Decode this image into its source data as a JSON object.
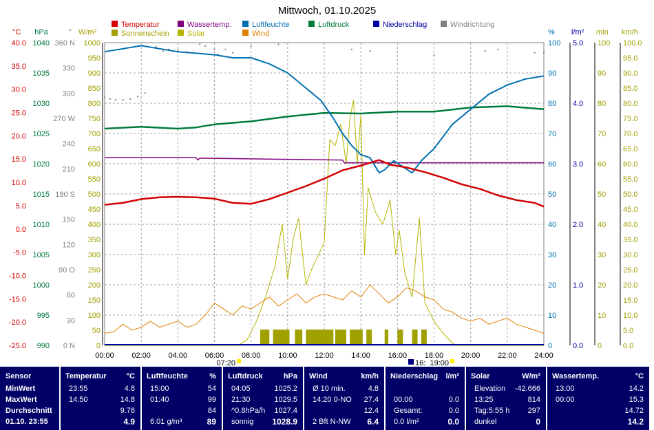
{
  "title": "Mittwoch, 01.10.2025",
  "colors": {
    "temperature": "#d40000",
    "water_temp": "#800080",
    "humidity": "#0070b0",
    "pressure": "#007a3d",
    "precipitation": "#0000a0",
    "wind_direction": "#808080",
    "sunshine": "#a0a000",
    "solar": "#b4b400",
    "wind": "#e08000",
    "panel_bg": "#000066"
  },
  "legend": [
    {
      "label": "Temperatur",
      "color": "#d40000"
    },
    {
      "label": "Wassertemp.",
      "color": "#800080"
    },
    {
      "label": "Luftfeuchte",
      "color": "#0070b0"
    },
    {
      "label": "Luftdruck",
      "color": "#007a3d"
    },
    {
      "label": "Niederschlag",
      "color": "#0000a0"
    },
    {
      "label": "Windrichtung",
      "color": "#808080"
    },
    {
      "label": "Sonnenschein",
      "color": "#a0a000"
    },
    {
      "label": "Solar",
      "color": "#b4b400"
    },
    {
      "label": "Wind",
      "color": "#e08000"
    }
  ],
  "sun_markers": {
    "sunrise": "07:20",
    "sunset": "19:00",
    "moon": "16:"
  },
  "chart_data": {
    "type": "line",
    "x_range": [
      "00:00",
      "24:00"
    ],
    "x_ticks": [
      "00:00",
      "02:00",
      "04:00",
      "06:00",
      "08:00",
      "10:00",
      "12:00",
      "14:00",
      "16:00",
      "18:00",
      "20:00",
      "22:00",
      "24:00"
    ],
    "axes": [
      {
        "unit": "°C",
        "ylim": [
          -25,
          40
        ],
        "color": "#d40000",
        "ticks": [
          "40.0",
          "35.0",
          "30.0",
          "25.0",
          "20.0",
          "15.0",
          "10.0",
          "5.0",
          "0.0",
          "-5.0",
          "-10.0",
          "-15.0",
          "-20.0",
          "-25.0"
        ]
      },
      {
        "unit": "hPa",
        "ylim": [
          990,
          1040
        ],
        "color": "#007a3d",
        "ticks": [
          "1040",
          "1035",
          "1030",
          "1025",
          "1020",
          "1015",
          "1010",
          "1005",
          "1000",
          "995",
          "990"
        ]
      },
      {
        "unit": "°",
        "ylim": [
          0,
          360
        ],
        "color": "#808080",
        "ticks": [
          "360 N",
          "330",
          "300",
          "270 W",
          "240",
          "210",
          "180 S",
          "150",
          "120",
          "90 O",
          "60",
          "30",
          "0 N"
        ]
      },
      {
        "unit": "W/m²",
        "ylim": [
          0,
          1000
        ],
        "color": "#a0a000",
        "ticks": [
          "1000",
          "950",
          "900",
          "850",
          "800",
          "750",
          "700",
          "650",
          "600",
          "550",
          "500",
          "450",
          "400",
          "350",
          "300",
          "250",
          "200",
          "150",
          "100",
          "50",
          "0"
        ]
      },
      {
        "unit": "%",
        "ylim": [
          0,
          100
        ],
        "color": "#0070b0",
        "ticks": [
          "100",
          "90",
          "80",
          "70",
          "60",
          "50",
          "40",
          "30",
          "20",
          "10",
          "0"
        ]
      },
      {
        "unit": "l/m²",
        "ylim": [
          0,
          5
        ],
        "color": "#0000a0",
        "ticks": [
          "5.0",
          "4.0",
          "3.0",
          "2.0",
          "1.0",
          "0.0"
        ]
      },
      {
        "unit": "min",
        "ylim": [
          0,
          100
        ],
        "color": "#a0a000",
        "ticks": [
          "100",
          "90",
          "80",
          "70",
          "60",
          "50",
          "40",
          "30",
          "20",
          "10",
          "0"
        ]
      },
      {
        "unit": "km/h",
        "ylim": [
          0,
          100
        ],
        "color": "#a0a000",
        "ticks": [
          "100.0",
          "95.0",
          "90.0",
          "85.0",
          "80.0",
          "75.0",
          "70.0",
          "65.0",
          "60.0",
          "55.0",
          "50.0",
          "45.0",
          "40.0",
          "35.0",
          "30.0",
          "25.0",
          "20.0",
          "15.0",
          "10.0",
          "5.0",
          "0.0"
        ]
      }
    ],
    "series": [
      {
        "name": "Temperatur",
        "unit": "°C",
        "points": [
          [
            0,
            5.2
          ],
          [
            1,
            5.6
          ],
          [
            2,
            6.4
          ],
          [
            3,
            6.8
          ],
          [
            4,
            6.9
          ],
          [
            5,
            6.8
          ],
          [
            6,
            6.5
          ],
          [
            7,
            5.6
          ],
          [
            8,
            5.4
          ],
          [
            9,
            6.4
          ],
          [
            10,
            7.8
          ],
          [
            11,
            9.2
          ],
          [
            12,
            10.8
          ],
          [
            13,
            12.6
          ],
          [
            14,
            13.6
          ],
          [
            15,
            14.8
          ],
          [
            15.6,
            13.8
          ],
          [
            16.5,
            13.2
          ],
          [
            17.5,
            12.2
          ],
          [
            18.5,
            11.0
          ],
          [
            19.5,
            9.6
          ],
          [
            20.5,
            8.6
          ],
          [
            21.5,
            7.2
          ],
          [
            22.5,
            6.2
          ],
          [
            23.5,
            5.6
          ],
          [
            24,
            4.8
          ]
        ]
      },
      {
        "name": "Luftfeuchte",
        "unit": "%",
        "points": [
          [
            0,
            97
          ],
          [
            1,
            98
          ],
          [
            2,
            99
          ],
          [
            3,
            98
          ],
          [
            4,
            97
          ],
          [
            5,
            96.5
          ],
          [
            6,
            96
          ],
          [
            7,
            95
          ],
          [
            8,
            95
          ],
          [
            9,
            93
          ],
          [
            10,
            90
          ],
          [
            11,
            85
          ],
          [
            11.8,
            81
          ],
          [
            12.5,
            75
          ],
          [
            13,
            70
          ],
          [
            13.5,
            66
          ],
          [
            14,
            63
          ],
          [
            14.5,
            62
          ],
          [
            15,
            57
          ],
          [
            15.3,
            58
          ],
          [
            15.8,
            61
          ],
          [
            16.3,
            59
          ],
          [
            16.8,
            57
          ],
          [
            17.3,
            61
          ],
          [
            18,
            65
          ],
          [
            19,
            73
          ],
          [
            20,
            78
          ],
          [
            21,
            83
          ],
          [
            22,
            86
          ],
          [
            23,
            88
          ],
          [
            24,
            89
          ]
        ]
      },
      {
        "name": "Luftdruck",
        "unit": "hPa",
        "points": [
          [
            0,
            1025.8
          ],
          [
            2,
            1026.1
          ],
          [
            4,
            1025.8
          ],
          [
            5,
            1026.0
          ],
          [
            6,
            1026.5
          ],
          [
            8,
            1027.0
          ],
          [
            10,
            1027.8
          ],
          [
            12,
            1028.4
          ],
          [
            14,
            1028.3
          ],
          [
            16,
            1028.6
          ],
          [
            18,
            1028.6
          ],
          [
            20,
            1029.3
          ],
          [
            22,
            1029.5
          ],
          [
            24,
            1029.0
          ]
        ]
      },
      {
        "name": "Wassertemp.",
        "unit": "°C",
        "points": [
          [
            0,
            15.3
          ],
          [
            5,
            15.3
          ],
          [
            5.1,
            14.8
          ],
          [
            5.2,
            15.2
          ],
          [
            13,
            14.8
          ],
          [
            13.1,
            14.2
          ],
          [
            24,
            14.2
          ]
        ]
      },
      {
        "name": "Wind",
        "unit": "km/h",
        "points": [
          [
            0,
            4
          ],
          [
            0.5,
            4.5
          ],
          [
            1,
            7
          ],
          [
            1.5,
            5
          ],
          [
            2,
            6
          ],
          [
            2.5,
            8
          ],
          [
            3,
            6
          ],
          [
            3.5,
            7
          ],
          [
            4,
            8
          ],
          [
            4.5,
            6
          ],
          [
            5,
            7
          ],
          [
            5.5,
            10
          ],
          [
            6,
            14
          ],
          [
            6.5,
            12
          ],
          [
            7,
            10
          ],
          [
            7.5,
            13
          ],
          [
            8,
            12
          ],
          [
            8.5,
            14
          ],
          [
            9,
            16
          ],
          [
            9.5,
            13
          ],
          [
            10,
            15
          ],
          [
            10.5,
            17
          ],
          [
            11,
            14
          ],
          [
            11.5,
            16
          ],
          [
            12,
            17
          ],
          [
            12.5,
            16
          ],
          [
            13,
            15
          ],
          [
            13.5,
            18
          ],
          [
            14,
            16
          ],
          [
            14.5,
            20
          ],
          [
            15,
            17
          ],
          [
            15.5,
            14
          ],
          [
            16,
            16
          ],
          [
            16.5,
            19
          ],
          [
            17,
            18
          ],
          [
            17.5,
            16
          ],
          [
            18,
            15
          ],
          [
            18.5,
            12
          ],
          [
            19,
            11
          ],
          [
            19.5,
            9
          ],
          [
            20,
            8
          ],
          [
            20.5,
            9
          ],
          [
            21,
            7
          ],
          [
            21.5,
            8
          ],
          [
            22,
            9
          ],
          [
            22.5,
            7
          ],
          [
            23,
            6
          ],
          [
            23.5,
            5
          ],
          [
            24,
            4
          ]
        ]
      },
      {
        "name": "Solar",
        "unit": "W/m²",
        "points": [
          [
            0,
            0
          ],
          [
            7.3,
            0
          ],
          [
            7.8,
            20
          ],
          [
            8.3,
            80
          ],
          [
            8.8,
            160
          ],
          [
            9.3,
            260
          ],
          [
            9.7,
            400
          ],
          [
            10,
            220
          ],
          [
            10.3,
            350
          ],
          [
            10.6,
            420
          ],
          [
            11,
            200
          ],
          [
            11.3,
            250
          ],
          [
            11.7,
            300
          ],
          [
            12,
            340
          ],
          [
            12.3,
            680
          ],
          [
            12.6,
            660
          ],
          [
            12.9,
            730
          ],
          [
            13.2,
            600
          ],
          [
            13.4,
            750
          ],
          [
            13.6,
            810
          ],
          [
            13.8,
            600
          ],
          [
            14.0,
            760
          ],
          [
            14.2,
            300
          ],
          [
            14.4,
            520
          ],
          [
            14.8,
            440
          ],
          [
            15.2,
            400
          ],
          [
            15.6,
            480
          ],
          [
            15.9,
            300
          ],
          [
            16.1,
            380
          ],
          [
            16.4,
            240
          ],
          [
            16.8,
            160
          ],
          [
            17.2,
            420
          ],
          [
            17.5,
            140
          ],
          [
            18,
            80
          ],
          [
            18.5,
            40
          ],
          [
            19,
            8
          ],
          [
            19.2,
            0
          ],
          [
            24,
            0
          ]
        ]
      }
    ],
    "sunshine_bars": [
      [
        8.5,
        9.0
      ],
      [
        9.2,
        10.1
      ],
      [
        10.4,
        10.8
      ],
      [
        11.0,
        12.5
      ],
      [
        12.6,
        13.2
      ],
      [
        13.4,
        14.1
      ],
      [
        14.3,
        14.6
      ],
      [
        15.3,
        15.5
      ],
      [
        16.0,
        16.3
      ],
      [
        16.8,
        17.1
      ],
      [
        17.3,
        17.6
      ]
    ],
    "wind_direction_points": [
      [
        0,
        295
      ],
      [
        0.3,
        293
      ],
      [
        0.6,
        292
      ],
      [
        1,
        292
      ],
      [
        1.4,
        293
      ],
      [
        1.8,
        296
      ],
      [
        2.2,
        300
      ],
      [
        2.8,
        355
      ],
      [
        3.2,
        350
      ],
      [
        3.5,
        352
      ],
      [
        4,
        351
      ],
      [
        4.5,
        349
      ],
      [
        5.2,
        358
      ],
      [
        5.5,
        356
      ],
      [
        6,
        352
      ],
      [
        6.2,
        346
      ],
      [
        6.6,
        352
      ],
      [
        7,
        348
      ],
      [
        8,
        356
      ],
      [
        9.5,
        358
      ],
      [
        13.5,
        352
      ],
      [
        14.5,
        350
      ],
      [
        18,
        345
      ],
      [
        20.8,
        350
      ],
      [
        21.5,
        352
      ],
      [
        23.5,
        348
      ],
      [
        24,
        348
      ]
    ]
  },
  "table": {
    "row_labels": [
      "Sensor",
      "MinWert",
      "MaxWert",
      "Durchschnitt",
      "01.10. 23:55"
    ],
    "columns": [
      {
        "header": "Temperatur",
        "unit": "°C",
        "rows": [
          [
            "23:55",
            "4.8"
          ],
          [
            "14:50",
            "14.8"
          ],
          [
            "",
            "9.76"
          ],
          [
            "",
            "4.9"
          ]
        ]
      },
      {
        "header": "Luftfeuchte",
        "unit": "%",
        "rows": [
          [
            "15:00",
            "54"
          ],
          [
            "01:40",
            "99"
          ],
          [
            "",
            "84"
          ],
          [
            "6.01 g/m³",
            "89"
          ]
        ]
      },
      {
        "header": "Luftdruck",
        "unit": "hPa",
        "rows": [
          [
            "04:05",
            "1025.2"
          ],
          [
            "21:30",
            "1029.5"
          ],
          [
            "^0.8hPa/h",
            "1027.4"
          ],
          [
            "sonnig",
            "1028.9"
          ]
        ]
      },
      {
        "header": "Wind",
        "unit": "km/h",
        "rows": [
          [
            "Ø 10 min.",
            "4.8"
          ],
          [
            "14:20  0-NO",
            "27.4"
          ],
          [
            "",
            "12.4"
          ],
          [
            "2 Bft N-NW",
            "6.4"
          ]
        ]
      },
      {
        "header": "Niederschlag",
        "unit": "l/m²",
        "rows": [
          [
            "",
            ""
          ],
          [
            "00:00",
            "0.0"
          ],
          [
            "Gesamt:",
            "0.0"
          ],
          [
            "0.0 l/m²",
            "0.0"
          ]
        ]
      },
      {
        "header": "Solar",
        "unit": "W/m²",
        "rows": [
          [
            "Elevation",
            "-42.666"
          ],
          [
            "13:25",
            "814"
          ],
          [
            "Tag:5:55 h",
            "297"
          ],
          [
            "dunkel",
            "0"
          ]
        ]
      },
      {
        "header": "Wassertemp.",
        "unit": "°C",
        "rows": [
          [
            "13:00",
            "14.2"
          ],
          [
            "00:00",
            "15.3"
          ],
          [
            "",
            "14.72"
          ],
          [
            "",
            "14.2"
          ]
        ]
      }
    ]
  }
}
